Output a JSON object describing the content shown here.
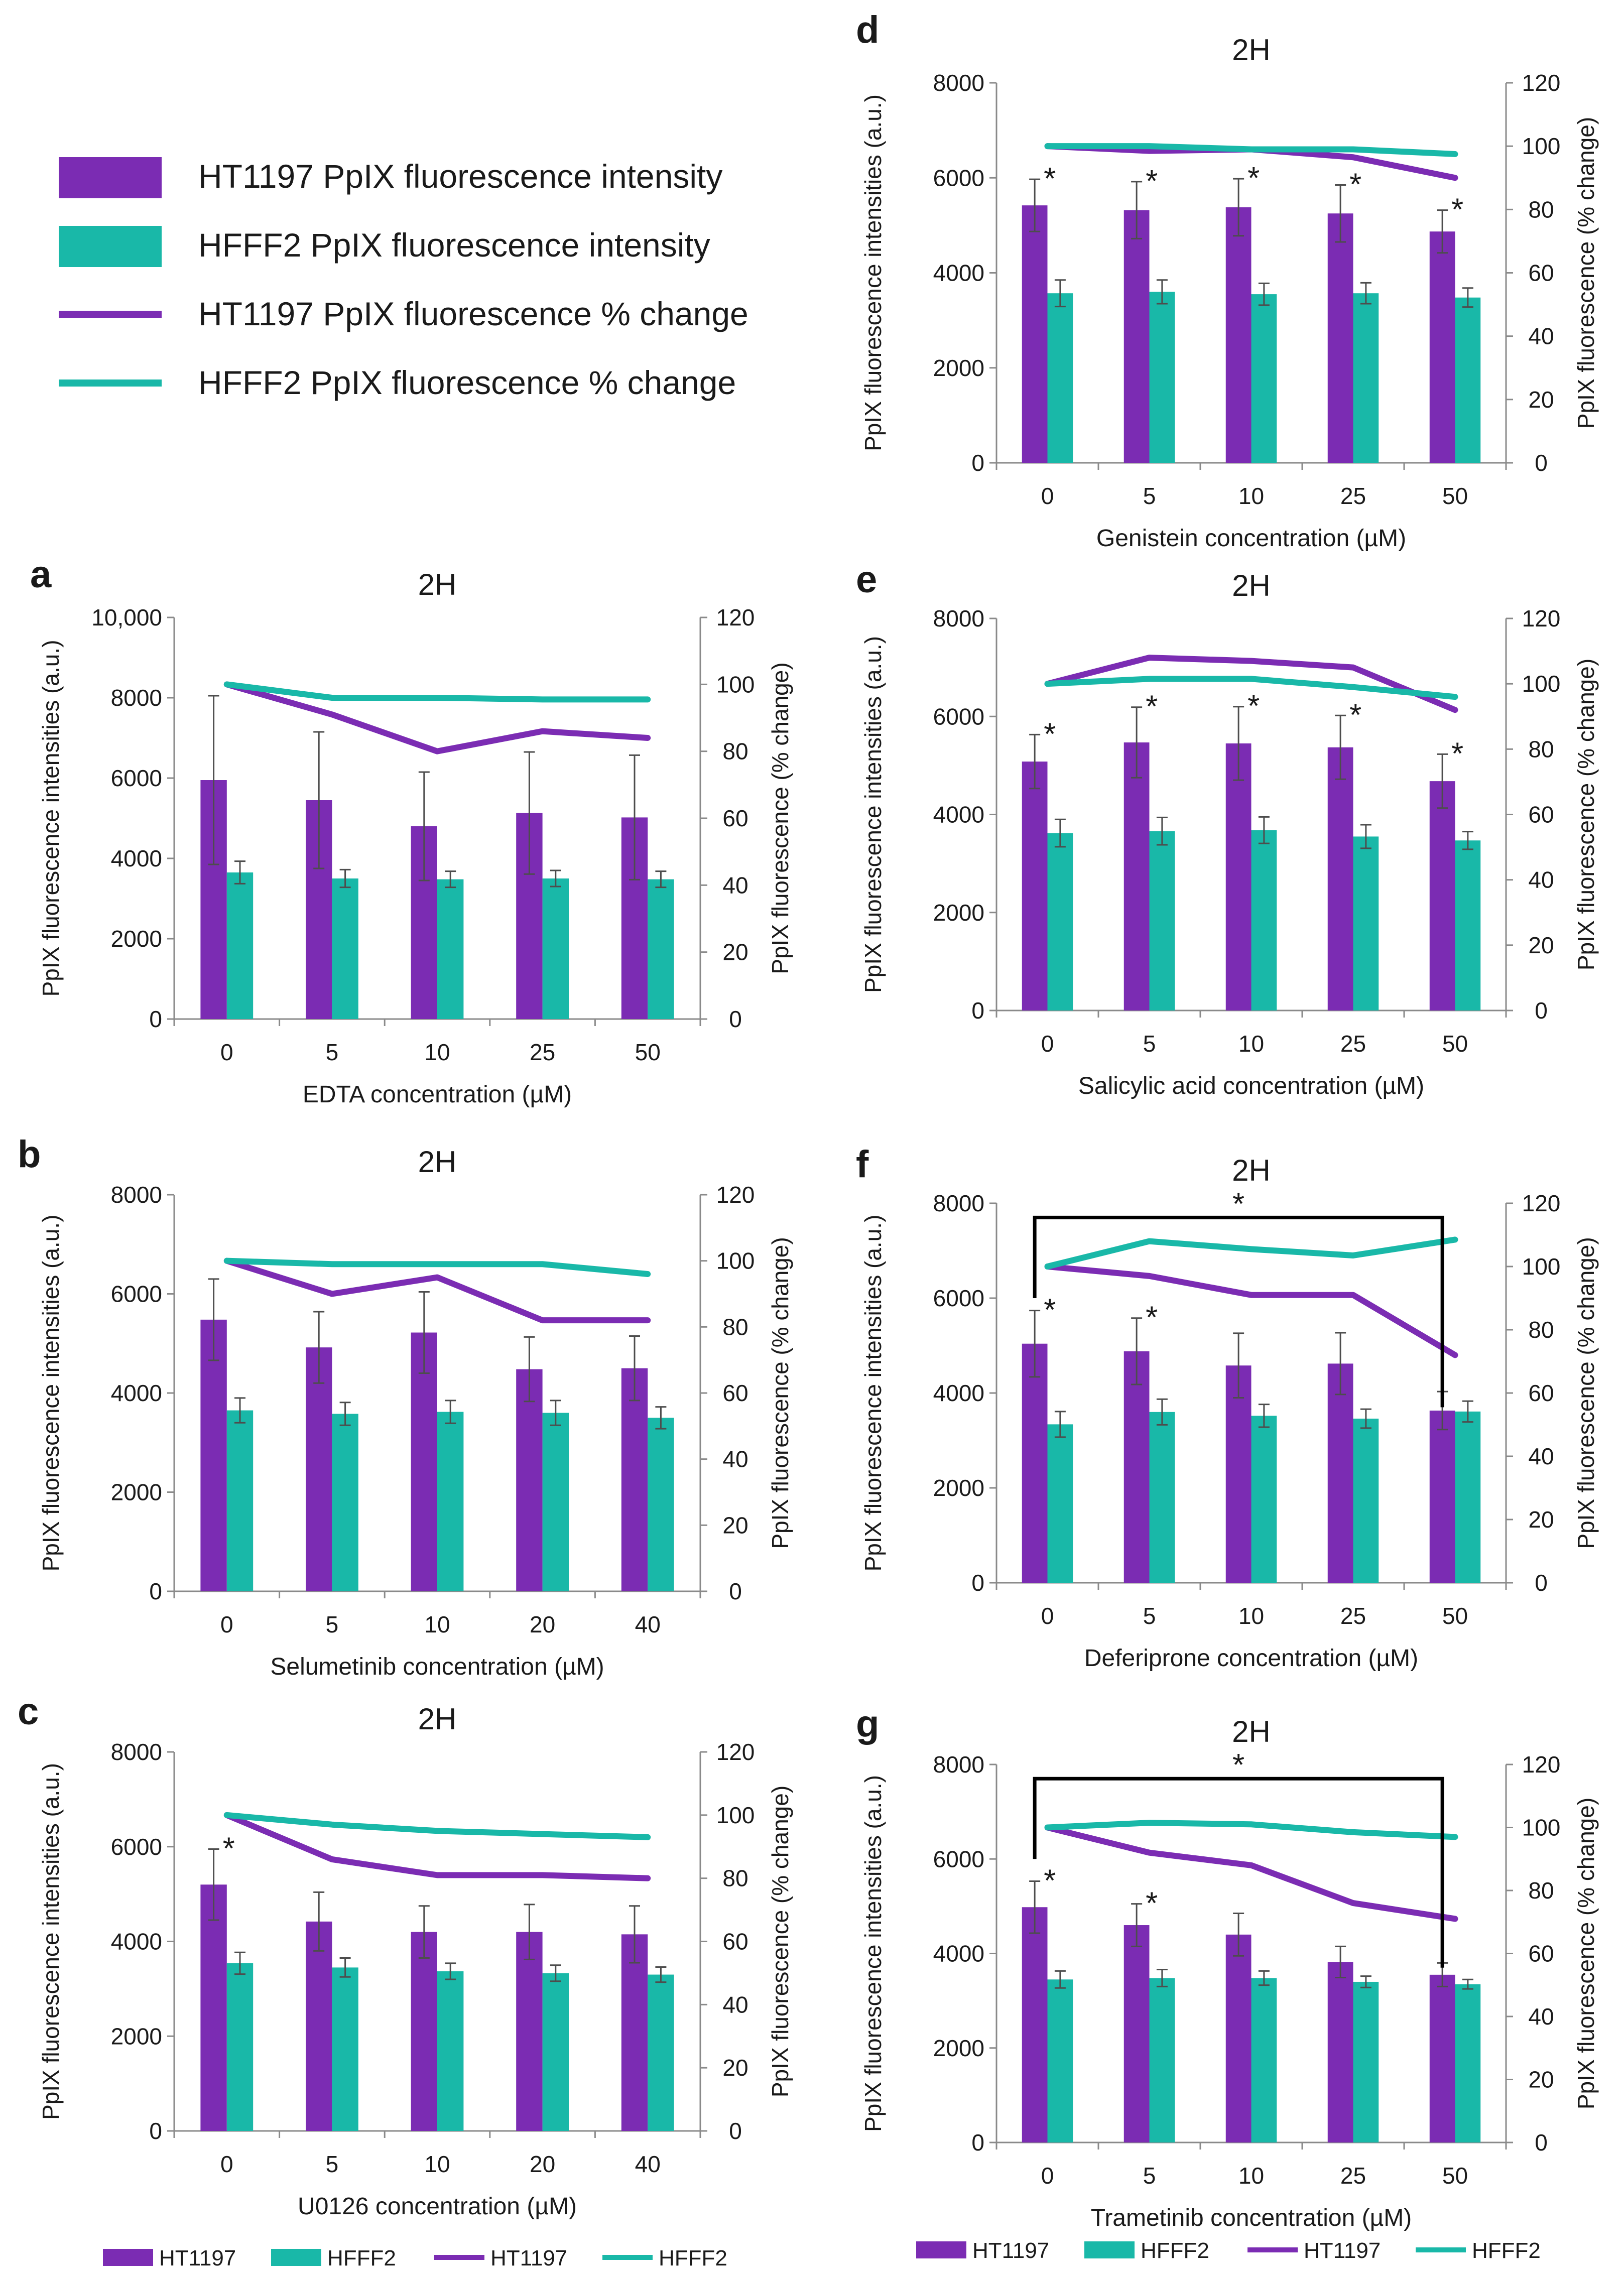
{
  "colors": {
    "ht": "#7b2cb3",
    "hf": "#19b8a8",
    "axis": "#8a8a8a",
    "error": "#4d4d4d",
    "text": "#1a1a1a"
  },
  "legend_top": [
    {
      "label": "HT1197 PpIX fluorescence intensity",
      "kind": "bar",
      "color": "#7b2cb3"
    },
    {
      "label": "HFFF2 PpIX fluorescence intensity",
      "kind": "bar",
      "color": "#19b8a8"
    },
    {
      "label": "HT1197 PpIX fluorescence % change",
      "kind": "line",
      "color": "#7b2cb3"
    },
    {
      "label": "HFFF2 PpIX fluorescence % change",
      "kind": "line",
      "color": "#19b8a8"
    }
  ],
  "legend_bottom": [
    {
      "label": "HT1197",
      "kind": "bar",
      "color": "#7b2cb3"
    },
    {
      "label": "HFFF2",
      "kind": "bar",
      "color": "#19b8a8"
    },
    {
      "label": "HT1197",
      "kind": "line",
      "color": "#7b2cb3"
    },
    {
      "label": "HFFF2",
      "kind": "line",
      "color": "#19b8a8"
    }
  ],
  "chart_data": [
    {
      "panel": "a",
      "type": "bar",
      "title": "2H",
      "xlabel": "EDTA concentration (µM)",
      "ylabel": "PpIX fluorescence intensities (a.u.)",
      "y2label": "PpIX fluorescence (% change)",
      "ylim": [
        0,
        10000
      ],
      "yticks": [
        0,
        2000,
        4000,
        6000,
        8000,
        10000
      ],
      "ytick_labels": [
        "0",
        "2000",
        "4000",
        "6000",
        "8000",
        "10,000"
      ],
      "y2lim": [
        0,
        120
      ],
      "y2ticks": [
        0,
        20,
        40,
        60,
        80,
        100,
        120
      ],
      "y2tick_labels": [
        "0",
        "20",
        "40",
        "60",
        "80",
        "100",
        "120"
      ],
      "categories": [
        "0",
        "5",
        "10",
        "25",
        "50"
      ],
      "series": [
        {
          "name": "HT1197",
          "kind": "bar",
          "values": [
            5950,
            5450,
            4800,
            5130,
            5020
          ],
          "errors": [
            2100,
            1700,
            1350,
            1520,
            1550
          ]
        },
        {
          "name": "HFFF2",
          "kind": "bar",
          "values": [
            3650,
            3500,
            3480,
            3500,
            3480
          ],
          "errors": [
            280,
            220,
            200,
            200,
            200
          ]
        },
        {
          "name": "HT1197",
          "kind": "line",
          "axis": "right",
          "values": [
            100,
            91,
            80,
            86,
            84
          ]
        },
        {
          "name": "HFFF2",
          "kind": "line",
          "axis": "right",
          "values": [
            100,
            96,
            96,
            95.5,
            95.5
          ]
        }
      ],
      "significance": [],
      "bracket": null
    },
    {
      "panel": "b",
      "type": "bar",
      "title": "2H",
      "xlabel": "Selumetinib concentration (µM)",
      "ylabel": "PpIX fluorescence intensities (a.u.)",
      "y2label": "PpIX fluorescence (% change)",
      "ylim": [
        0,
        8000
      ],
      "yticks": [
        0,
        2000,
        4000,
        6000,
        8000
      ],
      "ytick_labels": [
        "0",
        "2000",
        "4000",
        "6000",
        "8000"
      ],
      "y2lim": [
        0,
        120
      ],
      "y2ticks": [
        0,
        20,
        40,
        60,
        80,
        100,
        120
      ],
      "y2tick_labels": [
        "0",
        "20",
        "40",
        "60",
        "80",
        "100",
        "120"
      ],
      "categories": [
        "0",
        "5",
        "10",
        "20",
        "40"
      ],
      "series": [
        {
          "name": "HT1197",
          "kind": "bar",
          "values": [
            5480,
            4920,
            5220,
            4480,
            4500
          ],
          "errors": [
            820,
            720,
            820,
            650,
            650
          ]
        },
        {
          "name": "HFFF2",
          "kind": "bar",
          "values": [
            3650,
            3580,
            3620,
            3600,
            3500
          ],
          "errors": [
            250,
            230,
            230,
            250,
            220
          ]
        },
        {
          "name": "HT1197",
          "kind": "line",
          "axis": "right",
          "values": [
            100,
            90,
            95,
            82,
            82
          ]
        },
        {
          "name": "HFFF2",
          "kind": "line",
          "axis": "right",
          "values": [
            100,
            99,
            99,
            99,
            96
          ]
        }
      ],
      "significance": [],
      "bracket": null
    },
    {
      "panel": "c",
      "type": "bar",
      "title": "2H",
      "xlabel": "U0126 concentration (µM)",
      "ylabel": "PpIX fluorescence intensities (a.u.)",
      "y2label": "PpIX fluorescence (% change)",
      "ylim": [
        0,
        8000
      ],
      "yticks": [
        0,
        2000,
        4000,
        6000,
        8000
      ],
      "ytick_labels": [
        "0",
        "2000",
        "4000",
        "6000",
        "8000"
      ],
      "y2lim": [
        0,
        120
      ],
      "y2ticks": [
        0,
        20,
        40,
        60,
        80,
        100,
        120
      ],
      "y2tick_labels": [
        "0",
        "20",
        "40",
        "60",
        "80",
        "100",
        "120"
      ],
      "categories": [
        "0",
        "5",
        "10",
        "20",
        "40"
      ],
      "series": [
        {
          "name": "HT1197",
          "kind": "bar",
          "values": [
            5200,
            4420,
            4200,
            4200,
            4150
          ],
          "errors": [
            750,
            620,
            550,
            580,
            600
          ]
        },
        {
          "name": "HFFF2",
          "kind": "bar",
          "values": [
            3540,
            3450,
            3370,
            3330,
            3300
          ],
          "errors": [
            230,
            200,
            170,
            170,
            160
          ]
        },
        {
          "name": "HT1197",
          "kind": "line",
          "axis": "right",
          "values": [
            100,
            86,
            81,
            81,
            80
          ]
        },
        {
          "name": "HFFF2",
          "kind": "line",
          "axis": "right",
          "values": [
            100,
            97,
            95,
            94,
            93
          ]
        }
      ],
      "significance": [
        {
          "category": "0",
          "label": "*"
        }
      ],
      "bracket": null
    },
    {
      "panel": "d",
      "type": "bar",
      "title": "2H",
      "xlabel": "Genistein concentration (µM)",
      "ylabel": "PpIX fluorescence intensities (a.u.)",
      "y2label": "PpIX fluorescence (% change)",
      "ylim": [
        0,
        8000
      ],
      "yticks": [
        0,
        2000,
        4000,
        6000,
        8000
      ],
      "ytick_labels": [
        "0",
        "2000",
        "4000",
        "6000",
        "8000"
      ],
      "y2lim": [
        0,
        120
      ],
      "y2ticks": [
        0,
        20,
        40,
        60,
        80,
        100,
        120
      ],
      "y2tick_labels": [
        "0",
        "20",
        "40",
        "60",
        "80",
        "100",
        "120"
      ],
      "categories": [
        "0",
        "5",
        "10",
        "25",
        "50"
      ],
      "series": [
        {
          "name": "HT1197",
          "kind": "bar",
          "values": [
            5420,
            5320,
            5380,
            5250,
            4870
          ],
          "errors": [
            550,
            600,
            600,
            600,
            450
          ]
        },
        {
          "name": "HFFF2",
          "kind": "bar",
          "values": [
            3570,
            3600,
            3550,
            3570,
            3480
          ],
          "errors": [
            280,
            250,
            230,
            220,
            200
          ]
        },
        {
          "name": "HT1197",
          "kind": "line",
          "axis": "right",
          "values": [
            100,
            98.5,
            99,
            96.5,
            90
          ]
        },
        {
          "name": "HFFF2",
          "kind": "line",
          "axis": "right",
          "values": [
            100,
            100,
            99,
            99,
            97.5
          ]
        }
      ],
      "significance": [
        {
          "category": "0",
          "label": "*"
        },
        {
          "category": "5",
          "label": "*"
        },
        {
          "category": "10",
          "label": "*"
        },
        {
          "category": "25",
          "label": "*"
        },
        {
          "category": "50",
          "label": "*"
        }
      ],
      "bracket": null
    },
    {
      "panel": "e",
      "type": "bar",
      "title": "2H",
      "xlabel": "Salicylic acid concentration (µM)",
      "ylabel": "PpIX fluorescence intensities (a.u.)",
      "y2label": "PpIX fluorescence (% change)",
      "ylim": [
        0,
        8000
      ],
      "yticks": [
        0,
        2000,
        4000,
        6000,
        8000
      ],
      "ytick_labels": [
        "0",
        "2000",
        "4000",
        "6000",
        "8000"
      ],
      "y2lim": [
        0,
        120
      ],
      "y2ticks": [
        0,
        20,
        40,
        60,
        80,
        100,
        120
      ],
      "y2tick_labels": [
        "0",
        "20",
        "40",
        "60",
        "80",
        "100",
        "120"
      ],
      "categories": [
        "0",
        "5",
        "10",
        "25",
        "50"
      ],
      "series": [
        {
          "name": "HT1197",
          "kind": "bar",
          "values": [
            5080,
            5470,
            5450,
            5370,
            4680
          ],
          "errors": [
            550,
            720,
            750,
            650,
            550
          ]
        },
        {
          "name": "HFFF2",
          "kind": "bar",
          "values": [
            3620,
            3660,
            3680,
            3550,
            3470
          ],
          "errors": [
            280,
            280,
            270,
            240,
            180
          ]
        },
        {
          "name": "HT1197",
          "kind": "line",
          "axis": "right",
          "values": [
            100,
            108,
            107,
            105,
            92
          ]
        },
        {
          "name": "HFFF2",
          "kind": "line",
          "axis": "right",
          "values": [
            100,
            101.5,
            101.5,
            99,
            96
          ]
        }
      ],
      "significance": [
        {
          "category": "0",
          "label": "*"
        },
        {
          "category": "5",
          "label": "*"
        },
        {
          "category": "10",
          "label": "*"
        },
        {
          "category": "25",
          "label": "*"
        },
        {
          "category": "50",
          "label": "*"
        }
      ],
      "bracket": null
    },
    {
      "panel": "f",
      "type": "bar",
      "title": "2H",
      "xlabel": "Deferiprone concentration (µM)",
      "ylabel": "PpIX fluorescence intensities (a.u.)",
      "y2label": "PpIX fluorescence (% change)",
      "ylim": [
        0,
        8000
      ],
      "yticks": [
        0,
        2000,
        4000,
        6000,
        8000
      ],
      "ytick_labels": [
        "0",
        "2000",
        "4000",
        "6000",
        "8000"
      ],
      "y2lim": [
        0,
        120
      ],
      "y2ticks": [
        0,
        20,
        40,
        60,
        80,
        100,
        120
      ],
      "y2tick_labels": [
        "0",
        "20",
        "40",
        "60",
        "80",
        "100",
        "120"
      ],
      "categories": [
        "0",
        "5",
        "10",
        "25",
        "50"
      ],
      "series": [
        {
          "name": "HT1197",
          "kind": "bar",
          "values": [
            5040,
            4880,
            4580,
            4620,
            3630
          ],
          "errors": [
            700,
            700,
            680,
            650,
            400
          ]
        },
        {
          "name": "HFFF2",
          "kind": "bar",
          "values": [
            3340,
            3600,
            3520,
            3460,
            3610
          ],
          "errors": [
            270,
            270,
            240,
            200,
            220
          ]
        },
        {
          "name": "HT1197",
          "kind": "line",
          "axis": "right",
          "values": [
            100,
            97,
            91,
            91,
            72
          ]
        },
        {
          "name": "HFFF2",
          "kind": "line",
          "axis": "right",
          "values": [
            100,
            108,
            105.5,
            103.5,
            108.5
          ]
        }
      ],
      "significance": [
        {
          "category": "0",
          "label": "*"
        },
        {
          "category": "5",
          "label": "*"
        }
      ],
      "bracket": {
        "from": "0",
        "to": "50",
        "label": "*"
      }
    },
    {
      "panel": "g",
      "type": "bar",
      "title": "2H",
      "xlabel": "Trametinib concentration (µM)",
      "ylabel": "PpIX fluorescence intensities (a.u.)",
      "y2label": "PpIX fluorescence (% change)",
      "ylim": [
        0,
        8000
      ],
      "yticks": [
        0,
        2000,
        4000,
        6000,
        8000
      ],
      "ytick_labels": [
        "0",
        "2000",
        "4000",
        "6000",
        "8000"
      ],
      "y2lim": [
        0,
        120
      ],
      "y2ticks": [
        0,
        20,
        40,
        60,
        80,
        100,
        120
      ],
      "y2tick_labels": [
        "0",
        "20",
        "40",
        "60",
        "80",
        "100",
        "120"
      ],
      "categories": [
        "0",
        "5",
        "10",
        "25",
        "50"
      ],
      "series": [
        {
          "name": "HT1197",
          "kind": "bar",
          "values": [
            4980,
            4600,
            4400,
            3820,
            3550
          ],
          "errors": [
            550,
            450,
            450,
            330,
            250
          ]
        },
        {
          "name": "HFFF2",
          "kind": "bar",
          "values": [
            3450,
            3480,
            3480,
            3400,
            3350
          ],
          "errors": [
            180,
            180,
            150,
            120,
            100
          ]
        },
        {
          "name": "HT1197",
          "kind": "line",
          "axis": "right",
          "values": [
            100,
            92,
            88,
            76,
            71
          ]
        },
        {
          "name": "HFFF2",
          "kind": "line",
          "axis": "right",
          "values": [
            100,
            101.5,
            101,
            98.5,
            97
          ]
        }
      ],
      "significance": [
        {
          "category": "0",
          "label": "*"
        },
        {
          "category": "5",
          "label": "*"
        }
      ],
      "bracket": {
        "from": "0",
        "to": "50",
        "label": "*"
      }
    }
  ]
}
